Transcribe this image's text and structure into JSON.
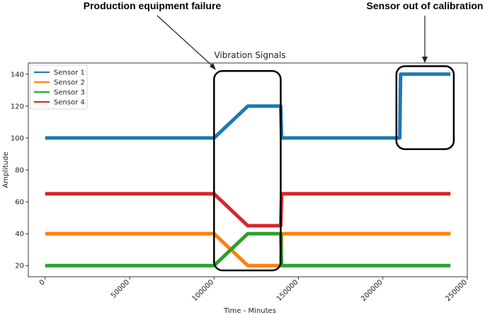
{
  "chart_data": {
    "type": "line",
    "title": "Vibration Signals",
    "xlabel": "Time - Minutes",
    "ylabel": "Amplitude",
    "xlim": [
      -10000,
      250000
    ],
    "ylim": [
      13,
      147
    ],
    "xticks": [
      0,
      50000,
      100000,
      150000,
      200000,
      250000
    ],
    "yticks": [
      20,
      40,
      60,
      80,
      100,
      120,
      140
    ],
    "legend_position": "top-left",
    "grid": false,
    "series": [
      {
        "name": "Sensor 1",
        "color": "#1f77b4",
        "x": [
          0,
          100000,
          120000,
          139500,
          140000,
          210000,
          210500,
          240000
        ],
        "y": [
          100,
          100,
          120,
          120,
          100,
          100,
          140,
          140
        ]
      },
      {
        "name": "Sensor 2",
        "color": "#ff7f0e",
        "x": [
          0,
          100000,
          120000,
          139500,
          140000,
          240000
        ],
        "y": [
          40,
          40,
          20,
          20,
          40,
          40
        ]
      },
      {
        "name": "Sensor 3",
        "color": "#2ca02c",
        "x": [
          0,
          100000,
          120000,
          139500,
          140000,
          240000
        ],
        "y": [
          20,
          20,
          40,
          40,
          20,
          20
        ]
      },
      {
        "name": "Sensor 4",
        "color": "#d62728",
        "x": [
          0,
          100000,
          120000,
          139500,
          140000,
          240000
        ],
        "y": [
          65,
          65,
          45,
          45,
          65,
          65
        ]
      }
    ],
    "annotations": [
      {
        "text": "Production equipment failure",
        "box_x": [
          100000,
          139500
        ],
        "box_y": [
          17,
          142
        ]
      },
      {
        "text": "Sensor out of calibration",
        "box_x": [
          208000,
          242000
        ],
        "box_y": [
          93,
          145
        ]
      }
    ]
  }
}
